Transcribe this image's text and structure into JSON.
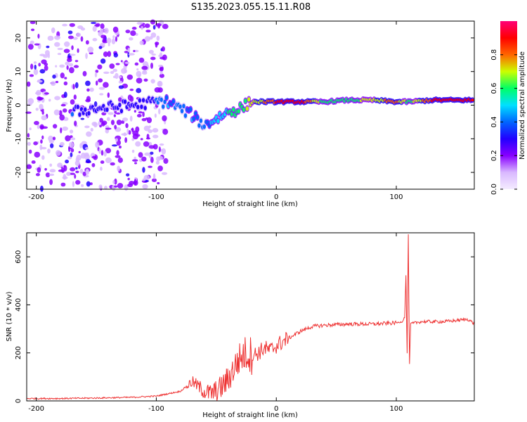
{
  "title": "S135.2023.055.15.11.R08",
  "chart_data": [
    {
      "type": "heatmap",
      "title": "S135.2023.055.15.11.R08",
      "xlabel": "Height of straight line (km)",
      "ylabel": "Frequency (Hz)",
      "xlim": [
        -208,
        165
      ],
      "ylim": [
        -25,
        25
      ],
      "xticks": [
        -200,
        -100,
        0,
        100
      ],
      "yticks": [
        20,
        10,
        0,
        -10,
        -20
      ],
      "colorbar": {
        "label": "Normalized spectral amplitude",
        "range": [
          0.0,
          1.0
        ],
        "ticks": [
          0.0,
          0.2,
          0.4,
          0.6,
          0.8
        ],
        "colors": [
          "#f4ecff",
          "#d9b8ff",
          "#8800ff",
          "#2200ff",
          "#0066ff",
          "#00e0ff",
          "#00ff66",
          "#ccff00",
          "#ff6600",
          "#ff0000",
          "#ff0077"
        ]
      },
      "ridge": [
        {
          "x": -170,
          "y": -2,
          "a": 0.35
        },
        {
          "x": -150,
          "y": -1,
          "a": 0.3
        },
        {
          "x": -120,
          "y": 0,
          "a": 0.3
        },
        {
          "x": -100,
          "y": 1,
          "a": 0.35
        },
        {
          "x": -90,
          "y": 1,
          "a": 0.45
        },
        {
          "x": -80,
          "y": -1,
          "a": 0.4
        },
        {
          "x": -70,
          "y": -3,
          "a": 0.45
        },
        {
          "x": -60,
          "y": -6,
          "a": 0.4
        },
        {
          "x": -50,
          "y": -4,
          "a": 0.5
        },
        {
          "x": -40,
          "y": -2,
          "a": 0.55
        },
        {
          "x": -30,
          "y": -1,
          "a": 0.6
        },
        {
          "x": -20,
          "y": 1,
          "a": 0.7
        },
        {
          "x": -10,
          "y": 1,
          "a": 0.75
        },
        {
          "x": 0,
          "y": 1,
          "a": 0.85
        },
        {
          "x": 20,
          "y": 1,
          "a": 0.9
        },
        {
          "x": 40,
          "y": 1,
          "a": 0.6
        },
        {
          "x": 60,
          "y": 1.5,
          "a": 0.6
        },
        {
          "x": 80,
          "y": 1.5,
          "a": 0.7
        },
        {
          "x": 100,
          "y": 1,
          "a": 0.8
        },
        {
          "x": 110,
          "y": 1,
          "a": 0.6
        },
        {
          "x": 130,
          "y": 1.5,
          "a": 0.85
        },
        {
          "x": 150,
          "y": 1.5,
          "a": 0.9
        },
        {
          "x": 165,
          "y": 1.5,
          "a": 0.85
        }
      ]
    },
    {
      "type": "line",
      "xlabel": "Height of straight line (km)",
      "ylabel": "SNR (10 * v/v)",
      "xlim": [
        -208,
        165
      ],
      "ylim": [
        0,
        700
      ],
      "xticks": [
        -200,
        -100,
        0,
        100
      ],
      "yticks": [
        0,
        200,
        400,
        600
      ],
      "color": "#ee3333",
      "series": [
        {
          "name": "SNR",
          "x": [
            -208,
            -180,
            -150,
            -120,
            -100,
            -90,
            -80,
            -70,
            -65,
            -60,
            -55,
            -50,
            -45,
            -40,
            -35,
            -30,
            -25,
            -20,
            -15,
            -10,
            -5,
            0,
            10,
            20,
            30,
            40,
            60,
            80,
            100,
            105,
            107,
            108,
            109,
            110,
            111,
            112,
            120,
            140,
            160,
            165
          ],
          "y": [
            10,
            10,
            12,
            15,
            20,
            30,
            40,
            80,
            60,
            40,
            30,
            40,
            60,
            90,
            140,
            180,
            200,
            190,
            200,
            220,
            210,
            230,
            260,
            290,
            310,
            315,
            320,
            320,
            325,
            330,
            350,
            520,
            200,
            690,
            150,
            320,
            330,
            330,
            340,
            320
          ]
        }
      ]
    }
  ]
}
